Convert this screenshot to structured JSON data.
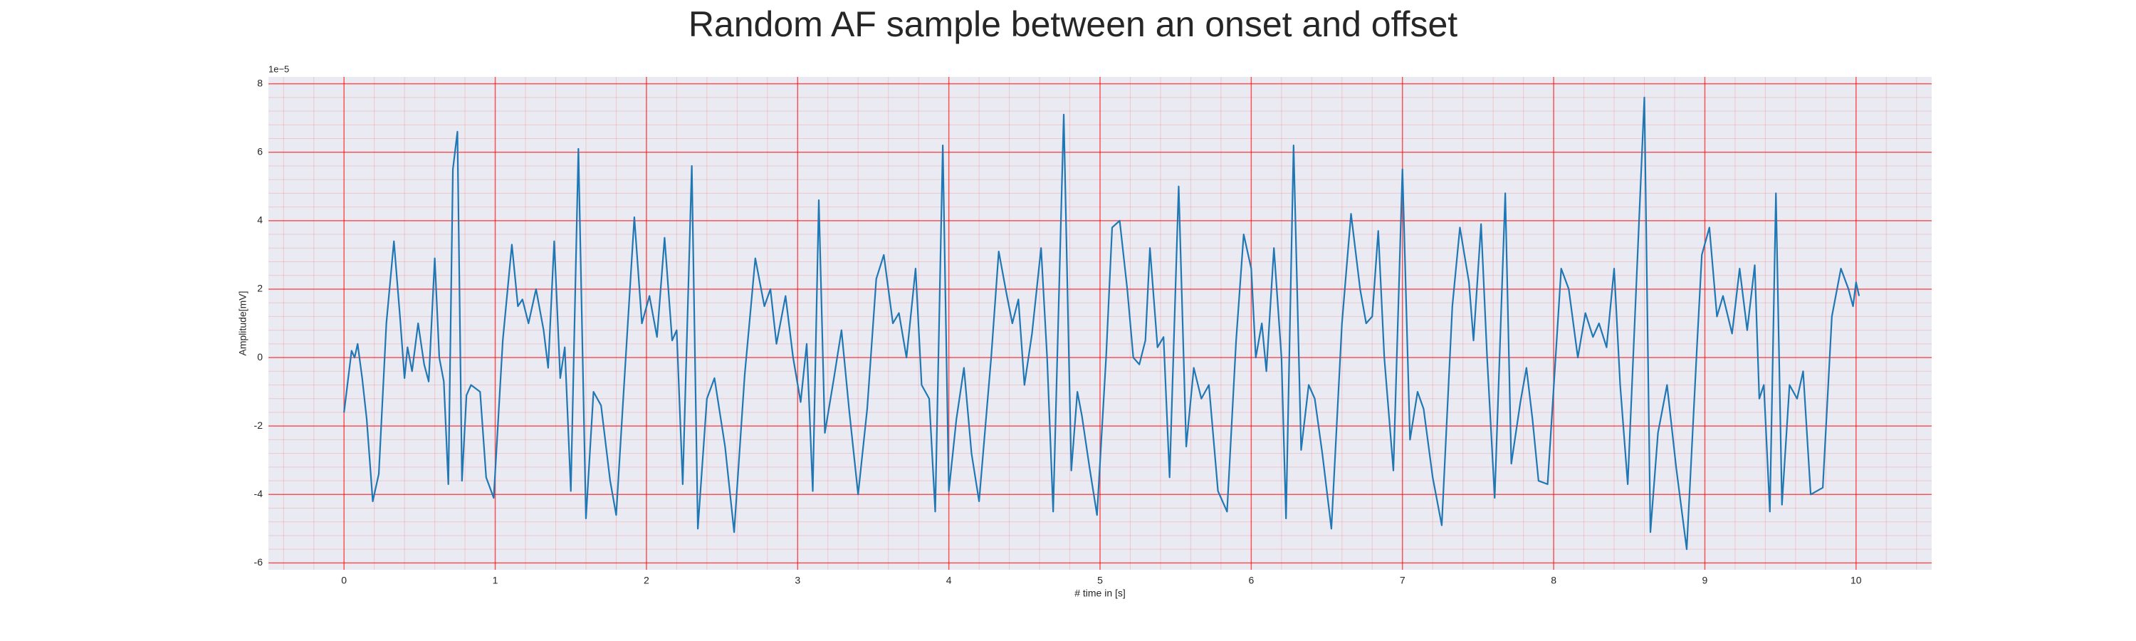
{
  "chart_data": {
    "type": "line",
    "title": "Random AF sample between an onset and offset",
    "xlabel": "# time in [s]",
    "ylabel": "Amplitude[mV]",
    "y_offset_label": "1e−5",
    "xlim": [
      -0.5,
      10.5
    ],
    "ylim": [
      -6.2,
      8.2
    ],
    "xticks": [
      0,
      1,
      2,
      3,
      4,
      5,
      6,
      7,
      8,
      9,
      10
    ],
    "yticks": [
      -6,
      -4,
      -2,
      0,
      2,
      4,
      6,
      8
    ],
    "grid": true,
    "minor_grid": true,
    "grid_color": "#ff0000",
    "background": "#eaeaf2",
    "series": [
      {
        "color": "#1f77b4",
        "x": [
          0.0,
          0.05,
          0.07,
          0.09,
          0.12,
          0.15,
          0.19,
          0.23,
          0.28,
          0.33,
          0.37,
          0.4,
          0.42,
          0.45,
          0.49,
          0.53,
          0.56,
          0.6,
          0.63,
          0.66,
          0.69,
          0.72,
          0.75,
          0.78,
          0.81,
          0.84,
          0.9,
          0.94,
          0.99,
          1.05,
          1.11,
          1.15,
          1.18,
          1.22,
          1.27,
          1.32,
          1.35,
          1.39,
          1.43,
          1.46,
          1.5,
          1.55,
          1.6,
          1.65,
          1.7,
          1.76,
          1.8,
          1.87,
          1.92,
          1.97,
          2.02,
          2.07,
          2.12,
          2.17,
          2.2,
          2.24,
          2.3,
          2.34,
          2.4,
          2.45,
          2.52,
          2.58,
          2.65,
          2.72,
          2.78,
          2.82,
          2.86,
          2.92,
          2.97,
          3.02,
          3.06,
          3.1,
          3.14,
          3.18,
          3.24,
          3.29,
          3.34,
          3.4,
          3.46,
          3.52,
          3.57,
          3.63,
          3.67,
          3.72,
          3.78,
          3.82,
          3.87,
          3.91,
          3.96,
          4.0,
          4.05,
          4.1,
          4.15,
          4.2,
          4.28,
          4.33,
          4.38,
          4.42,
          4.46,
          4.5,
          4.55,
          4.61,
          4.65,
          4.69,
          4.76,
          4.81,
          4.85,
          4.88,
          4.93,
          4.98,
          5.04,
          5.08,
          5.13,
          5.18,
          5.22,
          5.26,
          5.3,
          5.33,
          5.38,
          5.42,
          5.46,
          5.52,
          5.57,
          5.62,
          5.67,
          5.72,
          5.78,
          5.84,
          5.9,
          5.95,
          6.0,
          6.03,
          6.07,
          6.1,
          6.15,
          6.2,
          6.23,
          6.28,
          6.33,
          6.38,
          6.42,
          6.47,
          6.53,
          6.6,
          6.66,
          6.72,
          6.76,
          6.8,
          6.84,
          6.88,
          6.94,
          7.0,
          7.05,
          7.1,
          7.14,
          7.2,
          7.26,
          7.33,
          7.38,
          7.44,
          7.47,
          7.52,
          7.56,
          7.61,
          7.68,
          7.72,
          7.78,
          7.82,
          7.86,
          7.9,
          7.96,
          8.05,
          8.1,
          8.16,
          8.21,
          8.26,
          8.3,
          8.35,
          8.4,
          8.44,
          8.49,
          8.6,
          8.64,
          8.69,
          8.75,
          8.81,
          8.88,
          8.95,
          8.98,
          9.03,
          9.08,
          9.12,
          9.18,
          9.23,
          9.28,
          9.33,
          9.36,
          9.39,
          9.43,
          9.47,
          9.51,
          9.56,
          9.61,
          9.65,
          9.7,
          9.78,
          9.84,
          9.9,
          9.95,
          9.98,
          10.0,
          10.02
        ],
        "values": [
          -1.6,
          0.2,
          0.0,
          0.4,
          -0.6,
          -1.8,
          -4.2,
          -3.4,
          1.0,
          3.4,
          1.2,
          -0.6,
          0.3,
          -0.4,
          1.0,
          -0.2,
          -0.7,
          2.9,
          0.0,
          -0.7,
          -3.7,
          5.5,
          6.6,
          -3.6,
          -1.1,
          -0.8,
          -1.0,
          -3.5,
          -4.1,
          0.5,
          3.3,
          1.5,
          1.7,
          1.0,
          2.0,
          0.8,
          -0.3,
          3.4,
          -0.6,
          0.3,
          -3.9,
          6.1,
          -4.7,
          -1.0,
          -1.4,
          -3.6,
          -4.6,
          0.5,
          4.1,
          1.0,
          1.8,
          0.6,
          3.5,
          0.5,
          0.8,
          -3.7,
          5.6,
          -5.0,
          -1.2,
          -0.6,
          -2.6,
          -5.1,
          -0.5,
          2.9,
          1.5,
          2.0,
          0.4,
          1.8,
          0.0,
          -1.3,
          0.4,
          -3.9,
          4.6,
          -2.2,
          -0.6,
          0.8,
          -1.5,
          -4.0,
          -1.5,
          2.3,
          3.0,
          1.0,
          1.3,
          0.0,
          2.6,
          -0.8,
          -1.2,
          -4.5,
          6.2,
          -3.9,
          -1.8,
          -0.3,
          -2.8,
          -4.2,
          0.0,
          3.1,
          1.9,
          1.0,
          1.7,
          -0.8,
          0.7,
          3.2,
          0.0,
          -4.5,
          7.1,
          -3.3,
          -1.0,
          -1.7,
          -3.2,
          -4.6,
          0.0,
          3.8,
          4.0,
          2.0,
          0.0,
          -0.2,
          0.5,
          3.2,
          0.3,
          0.6,
          -3.5,
          5.0,
          -2.6,
          -0.3,
          -1.2,
          -0.8,
          -3.9,
          -4.5,
          0.5,
          3.6,
          2.6,
          0.0,
          1.0,
          -0.4,
          3.2,
          0.0,
          -4.7,
          6.2,
          -2.7,
          -0.8,
          -1.2,
          -2.8,
          -5.0,
          1.0,
          4.2,
          2.0,
          1.0,
          1.2,
          3.7,
          0.0,
          -3.3,
          5.5,
          -2.4,
          -1.0,
          -1.5,
          -3.5,
          -4.9,
          1.5,
          3.8,
          2.2,
          0.5,
          3.9,
          0.0,
          -4.1,
          4.8,
          -3.1,
          -1.3,
          -0.3,
          -1.8,
          -3.6,
          -3.7,
          2.6,
          2.0,
          0.0,
          1.3,
          0.6,
          1.0,
          0.3,
          2.6,
          -0.8,
          -3.7,
          7.6,
          -5.1,
          -2.2,
          -0.8,
          -3.2,
          -5.6,
          0.5,
          3.0,
          3.8,
          1.2,
          1.8,
          0.7,
          2.6,
          0.8,
          2.7,
          -1.2,
          -0.8,
          -4.5,
          4.8,
          -4.3,
          -0.8,
          -1.2,
          -0.4,
          -4.0,
          -3.8,
          1.2,
          2.6,
          2.0,
          1.5,
          2.2,
          1.8
        ]
      }
    ]
  }
}
